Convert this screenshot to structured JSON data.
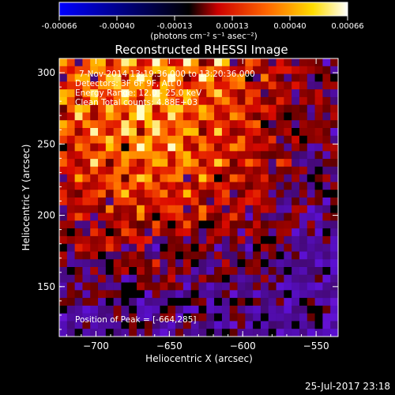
{
  "colorbar": {
    "ticks": [
      "-0.00066",
      "-0.00040",
      "-0.00013",
      "0.00013",
      "0.00040",
      "0.00066"
    ],
    "unit_label": "(photons cm⁻² s⁻¹ asec⁻²)",
    "colors": [
      "#0000ff",
      "#000000",
      "#ff0000",
      "#ffa500",
      "#ffff00",
      "#ffffff"
    ]
  },
  "chart_data": {
    "type": "heatmap",
    "title": "Reconstructed RHESSI Image",
    "xlabel": "Heliocentric X (arcsec)",
    "ylabel": "Heliocentric Y (arcsec)",
    "xlim": [
      -725,
      -535
    ],
    "ylim": [
      115,
      310
    ],
    "xticks": [
      -700,
      -650,
      -600,
      -550
    ],
    "yticks": [
      150,
      200,
      250,
      300
    ],
    "xtick_labels": [
      "−700",
      "−650",
      "−600",
      "−550"
    ],
    "ytick_labels": [
      "150",
      "200",
      "250",
      "300"
    ],
    "clim": [
      -0.00066,
      0.00066
    ],
    "annotations": [
      "7-Nov-2014 13:19:36.000 to 13:20:36.000",
      "Detectors: 3F 6F 9F, Att 0",
      "Energy Range: 12.0 - 25.0 keV",
      "Clean     Total counts: 4.88E+03"
    ],
    "peak_label": "Position of Peak = [-664,285]",
    "peak": [
      -664,
      285
    ]
  },
  "footer": {
    "timestamp": "25-Jul-2017 23:18"
  }
}
